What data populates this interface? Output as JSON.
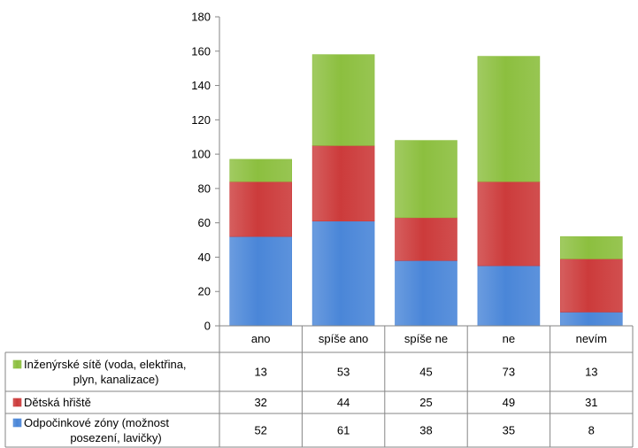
{
  "chart_data": {
    "type": "bar",
    "stacked": true,
    "categories": [
      "ano",
      "spíše ano",
      "spíše ne",
      "ne",
      "nevím"
    ],
    "series": [
      {
        "name": "Odpočinkové zóny (možnost posezení, lavičky)",
        "legend_lines": [
          "Odpočinkové zóny (možnost",
          "posezení, lavičky)"
        ],
        "color": "#4a86d8",
        "values": [
          52,
          61,
          38,
          35,
          8
        ]
      },
      {
        "name": "Dětská hřiště",
        "legend_lines": [
          "Dětská hřiště"
        ],
        "color": "#cc3b3b",
        "values": [
          32,
          44,
          25,
          49,
          31
        ]
      },
      {
        "name": "Inženýrské sítě (voda, elektřina, plyn, kanalizace)",
        "legend_lines": [
          "Inženýrské sítě (voda, elektřina,",
          "plyn, kanalizace)"
        ],
        "color": "#8cbf3f",
        "values": [
          13,
          53,
          45,
          73,
          13
        ]
      }
    ],
    "ylim": [
      0,
      180
    ],
    "yticks": [
      0,
      20,
      40,
      60,
      80,
      100,
      120,
      140,
      160,
      180
    ],
    "grid": false,
    "legend": "data-table"
  }
}
